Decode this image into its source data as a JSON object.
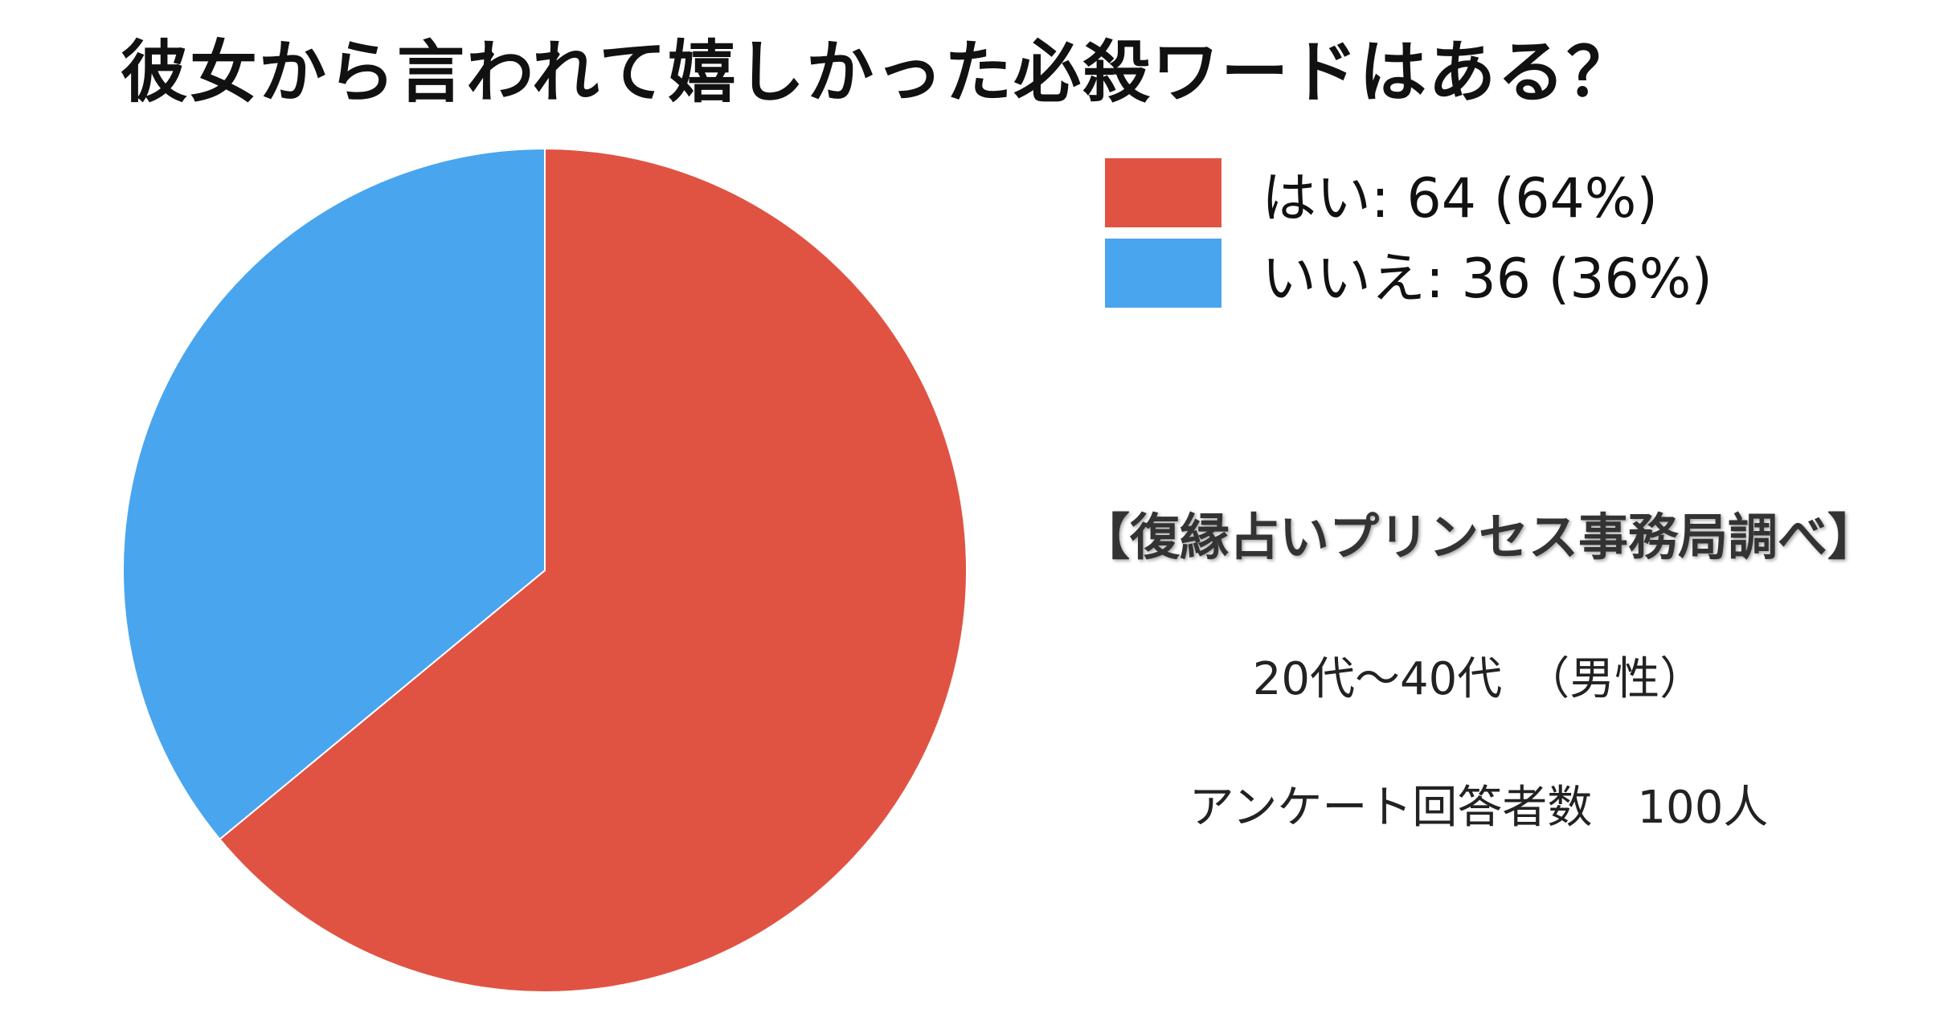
{
  "title": "彼女から言われて嬉しかった必殺ワードはある？",
  "chart_data": {
    "type": "pie",
    "title": "彼女から言われて嬉しかった必殺ワードはある？",
    "slices": [
      {
        "label": "はい",
        "value": 64,
        "percent": 64,
        "color": "#E05343",
        "legend_text": "はい: 64 (64%)"
      },
      {
        "label": "いいえ",
        "value": 36,
        "percent": 36,
        "color": "#49A5EE",
        "legend_text": "いいえ: 36 (36%)"
      }
    ],
    "legend_position": "top-right",
    "start_angle": "top, clockwise"
  },
  "source": "【復縁占いプリンセス事務局調べ】",
  "age_range": "20代〜40代　（男性）",
  "respondents": "アンケート回答者数　100人"
}
